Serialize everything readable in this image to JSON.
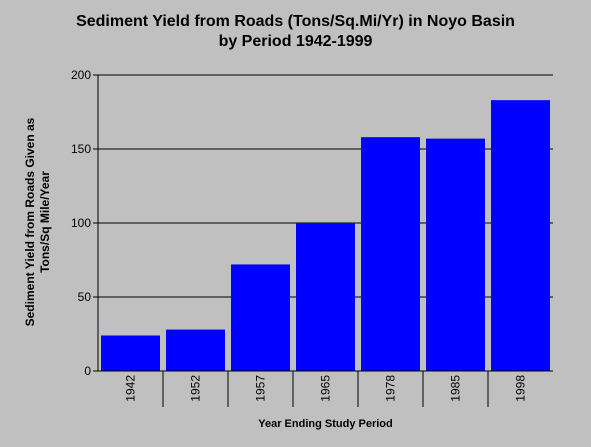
{
  "chart_data": {
    "type": "bar",
    "title_lines": [
      "Sediment Yield from Roads (Tons/Sq.Mi/Yr) in Noyo Basin",
      "by Period 1942-1999"
    ],
    "ylabel_lines": [
      "Sediment Yield from Roads Given as",
      "Tons/Sq Mile/Year"
    ],
    "xlabel": "Year Ending Study Period",
    "categories": [
      "1942",
      "1952",
      "1957",
      "1965",
      "1978",
      "1985",
      "1998"
    ],
    "values": [
      24,
      28,
      72,
      100,
      158,
      157,
      183
    ],
    "ylim": [
      0,
      200
    ],
    "yticks": [
      "0",
      "50",
      "100",
      "150",
      "200"
    ],
    "grid": true,
    "colors": {
      "bar": "#0000ff",
      "background": "#c0c0c0",
      "grid": "#000000"
    }
  }
}
